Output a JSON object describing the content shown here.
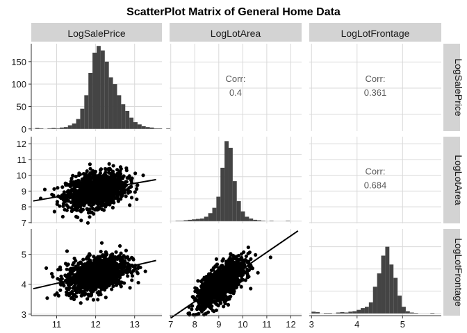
{
  "chart_data": {
    "type": "scatter-matrix",
    "title": "ScatterPlot Matrix of General Home Data",
    "variables": [
      "LogSalePrice",
      "LogLotArea",
      "LogLotFrontage"
    ],
    "axes": {
      "LogSalePrice": {
        "range": [
          10.35,
          13.7
        ],
        "ticks": [
          11,
          12,
          13
        ],
        "tick_labels": [
          "11",
          "12",
          "13"
        ]
      },
      "LogLotArea": {
        "range": [
          6.95,
          12.45
        ],
        "ticks": [
          7,
          8,
          9,
          10,
          11,
          12
        ],
        "tick_labels": [
          "7",
          "8",
          "9",
          "10",
          "11",
          "12"
        ]
      },
      "LogLotFrontage": {
        "range": [
          2.95,
          5.85
        ],
        "ticks": [
          3,
          4,
          5
        ],
        "tick_labels": [
          "3",
          "4",
          "5"
        ]
      }
    },
    "count_axis": {
      "range": [
        -5,
        190
      ],
      "ticks": [
        0,
        50,
        100,
        150
      ],
      "tick_labels": [
        "0",
        "50",
        "100",
        "150"
      ]
    },
    "correlations": [
      {
        "row": "LogSalePrice",
        "col": "LogLotArea",
        "label": "Corr:",
        "value": "0.4"
      },
      {
        "row": "LogSalePrice",
        "col": "LogLotFrontage",
        "label": "Corr:",
        "value": "0.361"
      },
      {
        "row": "LogLotArea",
        "col": "LogLotFrontage",
        "label": "Corr:",
        "value": "0.684"
      }
    ],
    "histograms": {
      "LogSalePrice": {
        "bin_start": 10.45,
        "bin_width": 0.105,
        "counts": [
          2,
          1,
          0,
          1,
          2,
          1,
          3,
          4,
          8,
          12,
          22,
          45,
          75,
          125,
          170,
          185,
          175,
          150,
          115,
          100,
          75,
          55,
          40,
          25,
          15,
          10,
          6,
          4,
          3,
          1,
          1,
          0,
          1
        ]
      },
      "LogLotArea": {
        "bin_start": 7.2,
        "bin_width": 0.17,
        "counts": [
          1,
          1,
          2,
          3,
          4,
          5,
          6,
          10,
          18,
          30,
          55,
          120,
          180,
          165,
          90,
          45,
          22,
          10,
          6,
          3,
          2,
          1,
          0,
          1,
          0,
          0,
          0,
          1
        ]
      },
      "LogLotFrontage": {
        "bin_start": 3.0,
        "bin_width": 0.09,
        "counts": [
          4,
          3,
          0,
          1,
          1,
          0,
          2,
          3,
          2,
          4,
          5,
          8,
          12,
          15,
          25,
          60,
          90,
          130,
          150,
          110,
          80,
          40,
          15,
          5,
          2,
          1,
          0,
          0,
          0,
          1
        ]
      }
    },
    "scatter_pairs": [
      {
        "x": "LogSalePrice",
        "y": "LogLotArea",
        "fit": {
          "slope": 0.43,
          "intercept": 3.9
        }
      },
      {
        "x": "LogSalePrice",
        "y": "LogLotFrontage",
        "fit": {
          "slope": 0.3,
          "intercept": 0.73
        }
      },
      {
        "x": "LogLotArea",
        "y": "LogLotFrontage",
        "fit": {
          "slope": 0.55,
          "intercept": -0.98
        }
      }
    ],
    "n_points": 1300,
    "grid": true,
    "colors": {
      "bars": "#444444",
      "points": "#000000",
      "fit_line": "#000000",
      "strip_fill": "#d3d3d3",
      "grid": "#d9d9d9",
      "corr_text": "#595959"
    }
  }
}
